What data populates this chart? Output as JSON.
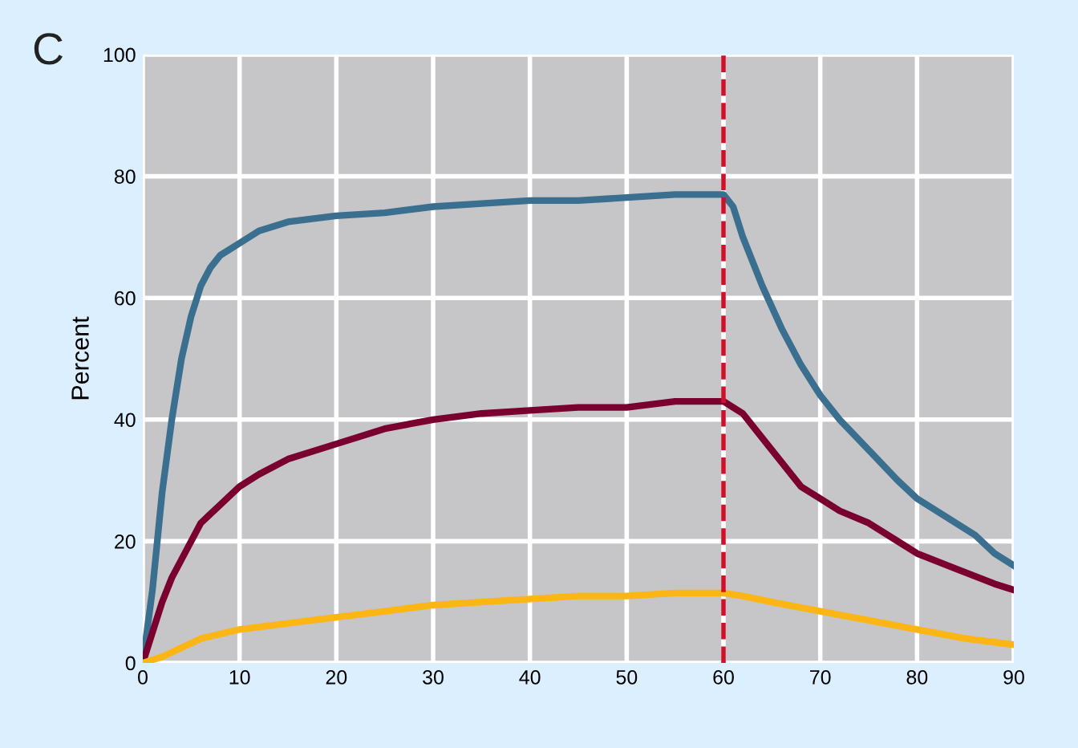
{
  "chart_data": {
    "type": "line",
    "title": "C",
    "ylabel": "Percent",
    "xlim": [
      0,
      90
    ],
    "xticks": [
      0,
      10,
      20,
      30,
      40,
      50,
      60,
      70,
      80,
      90
    ],
    "ylim": [
      0,
      100
    ],
    "yticks": [
      0,
      20,
      40,
      60,
      80,
      100
    ],
    "grid": true,
    "marker": "none",
    "line_style": "solid",
    "ref_lines": [
      {
        "axis": "x",
        "value": 60,
        "label": null,
        "color": "#d0102a",
        "line_style": "dashed"
      }
    ],
    "series": [
      {
        "color": "#3a6f8f",
        "x": [
          0,
          1,
          2,
          3,
          4,
          5,
          6,
          7,
          8,
          10,
          12,
          15,
          20,
          25,
          30,
          35,
          40,
          45,
          50,
          55,
          60,
          61,
          62,
          64,
          66,
          68,
          70,
          72,
          75,
          78,
          80,
          83,
          86,
          88,
          90
        ],
        "values": [
          0,
          12,
          28,
          40,
          50,
          57,
          62,
          65,
          67,
          69,
          71,
          72.5,
          73.5,
          74,
          75,
          75.5,
          76,
          76,
          76.5,
          77,
          77,
          75,
          70,
          62,
          55,
          49,
          44,
          40,
          35,
          30,
          27,
          24,
          21,
          18,
          16
        ]
      },
      {
        "color": "#7a0030",
        "x": [
          0,
          1,
          2,
          3,
          4,
          5,
          6,
          8,
          10,
          12,
          15,
          20,
          25,
          30,
          35,
          40,
          45,
          50,
          55,
          60,
          62,
          64,
          66,
          68,
          70,
          72,
          75,
          78,
          80,
          84,
          88,
          90
        ],
        "values": [
          0,
          5,
          10,
          14,
          17,
          20,
          23,
          26,
          29,
          31,
          33.5,
          36,
          38.5,
          40,
          41,
          41.5,
          42,
          42,
          43,
          43,
          41,
          37,
          33,
          29,
          27,
          25,
          23,
          20,
          18,
          15.5,
          13,
          12
        ]
      },
      {
        "color": "#fbb515",
        "x": [
          0,
          2,
          4,
          6,
          10,
          15,
          20,
          25,
          30,
          35,
          40,
          45,
          50,
          55,
          60,
          62,
          65,
          70,
          75,
          80,
          85,
          90
        ],
        "values": [
          0,
          1,
          2.5,
          4,
          5.5,
          6.5,
          7.5,
          8.5,
          9.5,
          10,
          10.5,
          11,
          11,
          11.5,
          11.5,
          11,
          10,
          8.5,
          7,
          5.5,
          4,
          3
        ]
      }
    ]
  }
}
